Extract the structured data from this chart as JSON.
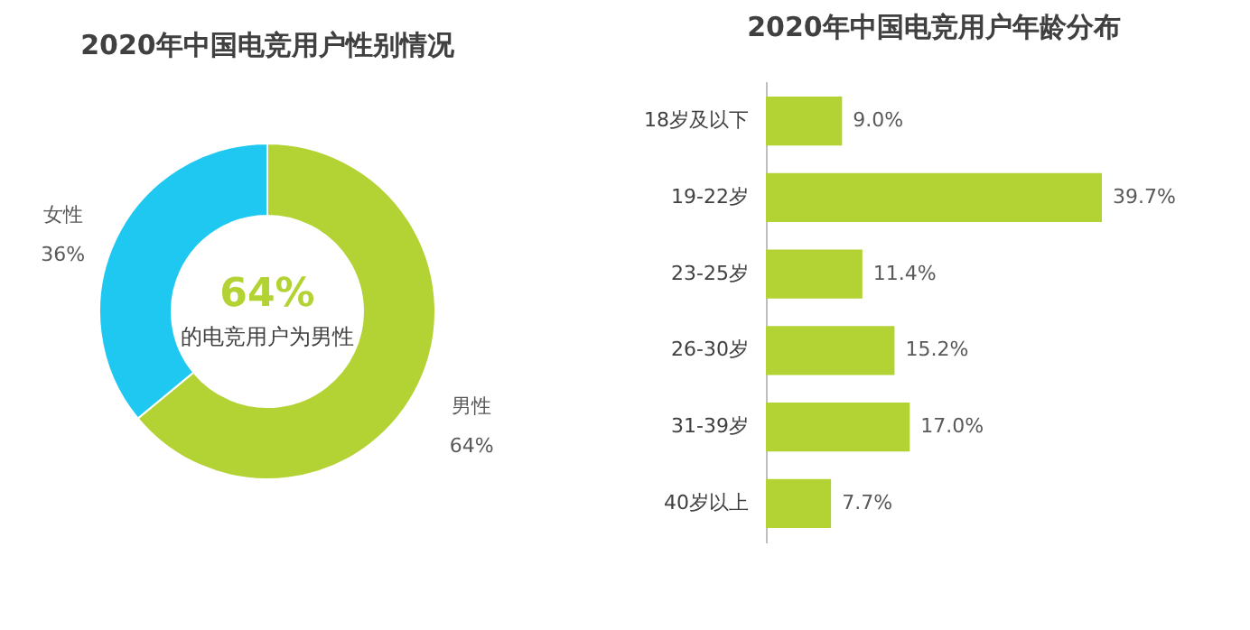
{
  "chart_data": [
    {
      "type": "donut",
      "title": "2020年中国电竞用户性别情况",
      "categories": [
        "男性",
        "女性"
      ],
      "values": [
        64,
        36
      ],
      "colors": [
        "#b3d334",
        "#1fc8f0"
      ],
      "value_labels": [
        "64%",
        "36%"
      ],
      "annotations": [
        "64%",
        "的电竞用户为男性"
      ]
    },
    {
      "type": "bar",
      "title": "2020年中国电竞用户年龄分布",
      "orientation": "horizontal",
      "categories": [
        "18岁及以下",
        "19-22岁",
        "23-25岁",
        "26-30岁",
        "31-39岁",
        "40岁以上"
      ],
      "values": [
        9.0,
        39.7,
        11.4,
        15.2,
        17.0,
        7.7
      ],
      "color": "#b3d334",
      "tick_labels": "y",
      "value_labels": [
        "9.0%",
        "39.7%",
        "11.4%",
        "15.2%",
        "17.0%",
        "7.7%"
      ]
    }
  ]
}
